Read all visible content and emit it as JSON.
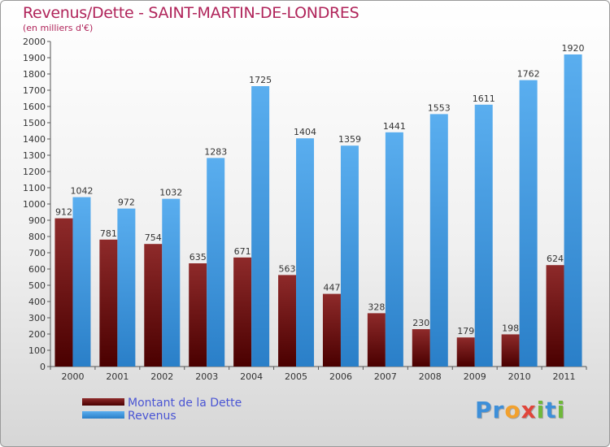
{
  "title": "Revenus/Dette - SAINT-MARTIN-DE-LONDRES",
  "subtitle": "(en milliers d'€)",
  "chart_data": {
    "type": "bar",
    "categories": [
      "2000",
      "2001",
      "2002",
      "2003",
      "2004",
      "2005",
      "2006",
      "2007",
      "2008",
      "2009",
      "2010",
      "2011"
    ],
    "series": [
      {
        "name": "Montant de la Dette",
        "color": "#8b1a1a",
        "values": [
          912,
          781,
          754,
          635,
          671,
          563,
          447,
          328,
          230,
          179,
          198,
          624
        ]
      },
      {
        "name": "Revenus",
        "color": "#3d9ae6",
        "values": [
          1042,
          972,
          1032,
          1283,
          1725,
          1404,
          1359,
          1441,
          1553,
          1611,
          1762,
          1920
        ]
      }
    ],
    "ylim": [
      0,
      2000
    ],
    "yticks": [
      0,
      100,
      200,
      300,
      400,
      500,
      600,
      700,
      800,
      900,
      1000,
      1100,
      1200,
      1300,
      1400,
      1500,
      1600,
      1700,
      1800,
      1900,
      2000
    ],
    "grid": false,
    "legend": "bottom-left"
  },
  "logo": {
    "letters": [
      {
        "ch": "P",
        "color": "#3d8fd9"
      },
      {
        "ch": "r",
        "color": "#3d8fd9"
      },
      {
        "ch": "o",
        "color": "#f2a12e"
      },
      {
        "ch": "x",
        "color": "#e0453a"
      },
      {
        "ch": "i",
        "color": "#6fb83a"
      },
      {
        "ch": "t",
        "color": "#3d8fd9"
      },
      {
        "ch": "i",
        "color": "#6fb83a"
      }
    ]
  }
}
